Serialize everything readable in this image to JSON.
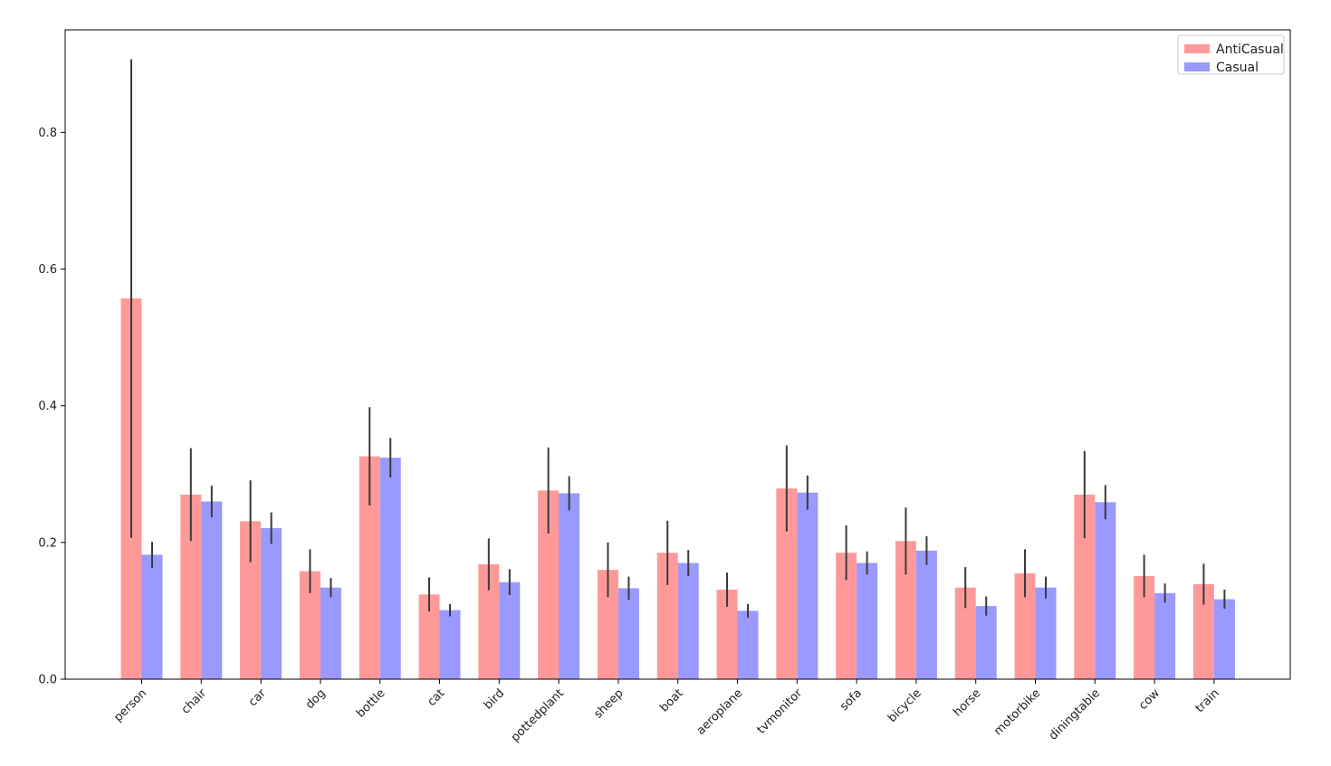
{
  "chart_data": {
    "type": "bar",
    "title": "",
    "xlabel": "",
    "ylabel": "",
    "ylim": [
      0,
      0.95
    ],
    "yticks": [
      0.0,
      0.2,
      0.4,
      0.6,
      0.8
    ],
    "ytick_labels": [
      "0.0",
      "0.2",
      "0.4",
      "0.6",
      "0.8"
    ],
    "grid": false,
    "legend_position": "top-right",
    "categories": [
      "person",
      "chair",
      "car",
      "dog",
      "bottle",
      "cat",
      "bird",
      "pottedplant",
      "sheep",
      "boat",
      "aeroplane",
      "tvmonitor",
      "sofa",
      "bicycle",
      "horse",
      "motorbike",
      "diningtable",
      "cow",
      "train"
    ],
    "series": [
      {
        "name": "AntiCasual",
        "color": "#ff9999",
        "values": [
          0.557,
          0.27,
          0.231,
          0.158,
          0.326,
          0.124,
          0.168,
          0.276,
          0.16,
          0.185,
          0.131,
          0.279,
          0.185,
          0.202,
          0.134,
          0.155,
          0.27,
          0.151,
          0.139
        ],
        "error": [
          0.35,
          0.068,
          0.06,
          0.032,
          0.072,
          0.025,
          0.038,
          0.063,
          0.04,
          0.047,
          0.025,
          0.063,
          0.04,
          0.049,
          0.03,
          0.035,
          0.064,
          0.031,
          0.03
        ]
      },
      {
        "name": "Casual",
        "color": "#9999ff",
        "values": [
          0.182,
          0.26,
          0.221,
          0.134,
          0.324,
          0.101,
          0.142,
          0.272,
          0.133,
          0.17,
          0.1,
          0.273,
          0.17,
          0.188,
          0.107,
          0.134,
          0.259,
          0.126,
          0.117
        ],
        "error": [
          0.019,
          0.023,
          0.023,
          0.014,
          0.029,
          0.009,
          0.019,
          0.025,
          0.017,
          0.019,
          0.01,
          0.025,
          0.017,
          0.021,
          0.014,
          0.016,
          0.025,
          0.014,
          0.014
        ]
      }
    ]
  }
}
